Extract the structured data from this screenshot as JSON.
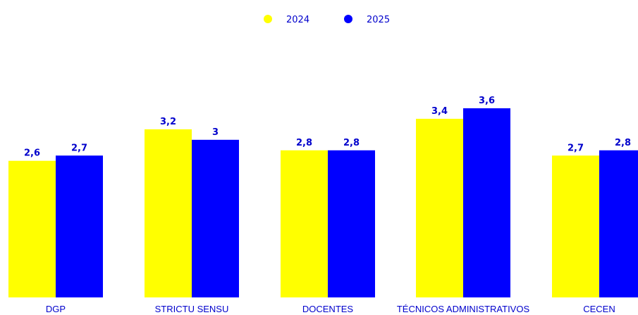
{
  "chart_data": {
    "type": "bar",
    "categories": [
      "DGP",
      "STRICTU SENSU",
      "DOCENTES",
      "TÉCNICOS ADMINISTRATIVOS",
      "CECEN"
    ],
    "series": [
      {
        "name": "2024",
        "color": "#ffff00",
        "values": [
          2.6,
          3.2,
          2.8,
          3.4,
          2.7
        ],
        "labels": [
          "2,6",
          "3,2",
          "2,8",
          "3,4",
          "2,7"
        ]
      },
      {
        "name": "2025",
        "color": "#0000ff",
        "values": [
          2.7,
          3.0,
          2.8,
          3.6,
          2.8
        ],
        "labels": [
          "2,7",
          "3",
          "2,8",
          "3,6",
          "2,8"
        ]
      }
    ],
    "title": "",
    "xlabel": "",
    "ylabel": "",
    "ylim": [
      0,
      3.6
    ],
    "grid": false,
    "legend_position": "top-center",
    "label_color": "#0000cc"
  }
}
